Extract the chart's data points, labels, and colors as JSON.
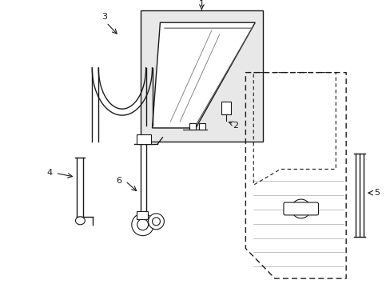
{
  "bg_color": "#ffffff",
  "line_color": "#1a1a1a",
  "box_fill": "#e8e8e8",
  "figsize": [
    4.89,
    3.6
  ],
  "dpi": 100
}
